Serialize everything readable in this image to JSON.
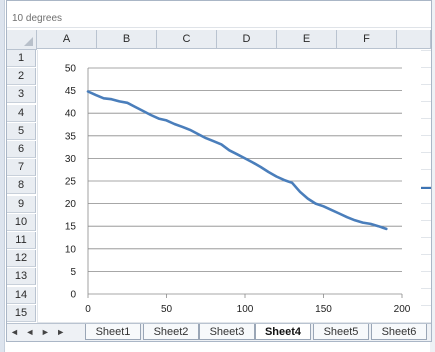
{
  "title_text": "10 degrees",
  "columns": [
    "A",
    "B",
    "C",
    "D",
    "E",
    "F"
  ],
  "rows": [
    "1",
    "2",
    "3",
    "4",
    "5",
    "6",
    "7",
    "8",
    "9",
    "10",
    "11",
    "12",
    "13",
    "14",
    "15"
  ],
  "sheets": [
    "Sheet1",
    "Sheet2",
    "Sheet3",
    "Sheet4",
    "Sheet5",
    "Sheet6"
  ],
  "active_sheet": "Sheet4",
  "tab_nav_glyphs": "◄ ◄ ► ►",
  "chart_data": {
    "type": "line",
    "title": "",
    "xlabel": "",
    "ylabel": "",
    "xlim": [
      0,
      200
    ],
    "ylim": [
      0,
      50
    ],
    "x_ticks": [
      "0",
      "50",
      "100",
      "150",
      "200"
    ],
    "y_ticks": [
      "0",
      "5",
      "10",
      "15",
      "20",
      "25",
      "30",
      "35",
      "40",
      "45",
      "50"
    ],
    "grid": true,
    "series": [
      {
        "color": "#4a7ebb",
        "x": [
          0,
          5,
          10,
          15,
          20,
          25,
          30,
          35,
          40,
          45,
          50,
          55,
          60,
          65,
          70,
          75,
          80,
          85,
          90,
          95,
          100,
          105,
          110,
          115,
          120,
          125,
          130,
          135,
          140,
          145,
          150,
          155,
          160,
          165,
          170,
          175,
          180,
          185,
          190
        ],
        "y": [
          44.8,
          44.0,
          43.3,
          43.1,
          42.6,
          42.3,
          41.4,
          40.5,
          39.6,
          38.8,
          38.4,
          37.6,
          37.0,
          36.3,
          35.4,
          34.5,
          33.8,
          33.1,
          31.8,
          30.9,
          30.0,
          29.1,
          28.1,
          27.0,
          26.0,
          25.2,
          24.6,
          22.6,
          21.1,
          20.0,
          19.4,
          18.6,
          17.8,
          17.0,
          16.3,
          15.8,
          15.5,
          15.0,
          14.4
        ]
      }
    ]
  }
}
